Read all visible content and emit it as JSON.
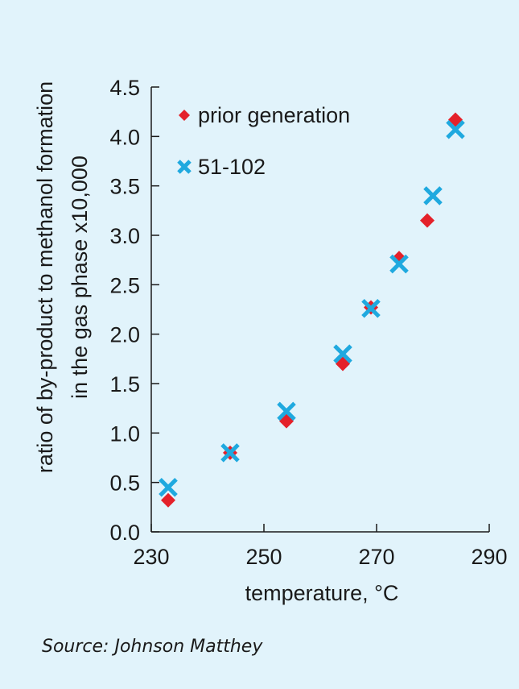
{
  "chart_data": {
    "type": "scatter",
    "title": "",
    "xlabel": "temperature, °C",
    "ylabel_lines": [
      "ratio of by-product to methanol formation",
      "in the gas phase x10,000"
    ],
    "xlim": [
      230,
      290
    ],
    "ylim": [
      0.0,
      4.5
    ],
    "x_ticks": [
      "230",
      "250",
      "270",
      "290"
    ],
    "y_ticks": [
      "0.0",
      "0.5",
      "1.0",
      "1.5",
      "2.0",
      "2.5",
      "3.0",
      "3.5",
      "4.0",
      "4.5"
    ],
    "grid": false,
    "legend_position": "top-left",
    "series": [
      {
        "name": "prior generation",
        "marker": "diamond",
        "color": "#e4212a",
        "points": [
          {
            "x": 233,
            "y": 0.32
          },
          {
            "x": 244,
            "y": 0.8
          },
          {
            "x": 254,
            "y": 1.12
          },
          {
            "x": 264,
            "y": 1.7
          },
          {
            "x": 269,
            "y": 2.27
          },
          {
            "x": 274,
            "y": 2.77
          },
          {
            "x": 279,
            "y": 3.15
          },
          {
            "x": 284,
            "y": 4.17
          }
        ]
      },
      {
        "name": "51-102",
        "marker": "x",
        "color": "#1fa9df",
        "points": [
          {
            "x": 233,
            "y": 0.45
          },
          {
            "x": 244,
            "y": 0.8
          },
          {
            "x": 254,
            "y": 1.22
          },
          {
            "x": 264,
            "y": 1.8
          },
          {
            "x": 269,
            "y": 2.26
          },
          {
            "x": 274,
            "y": 2.71
          },
          {
            "x": 280,
            "y": 3.4
          },
          {
            "x": 284,
            "y": 4.07
          }
        ]
      }
    ]
  },
  "source": "Source: Johnson Matthey"
}
